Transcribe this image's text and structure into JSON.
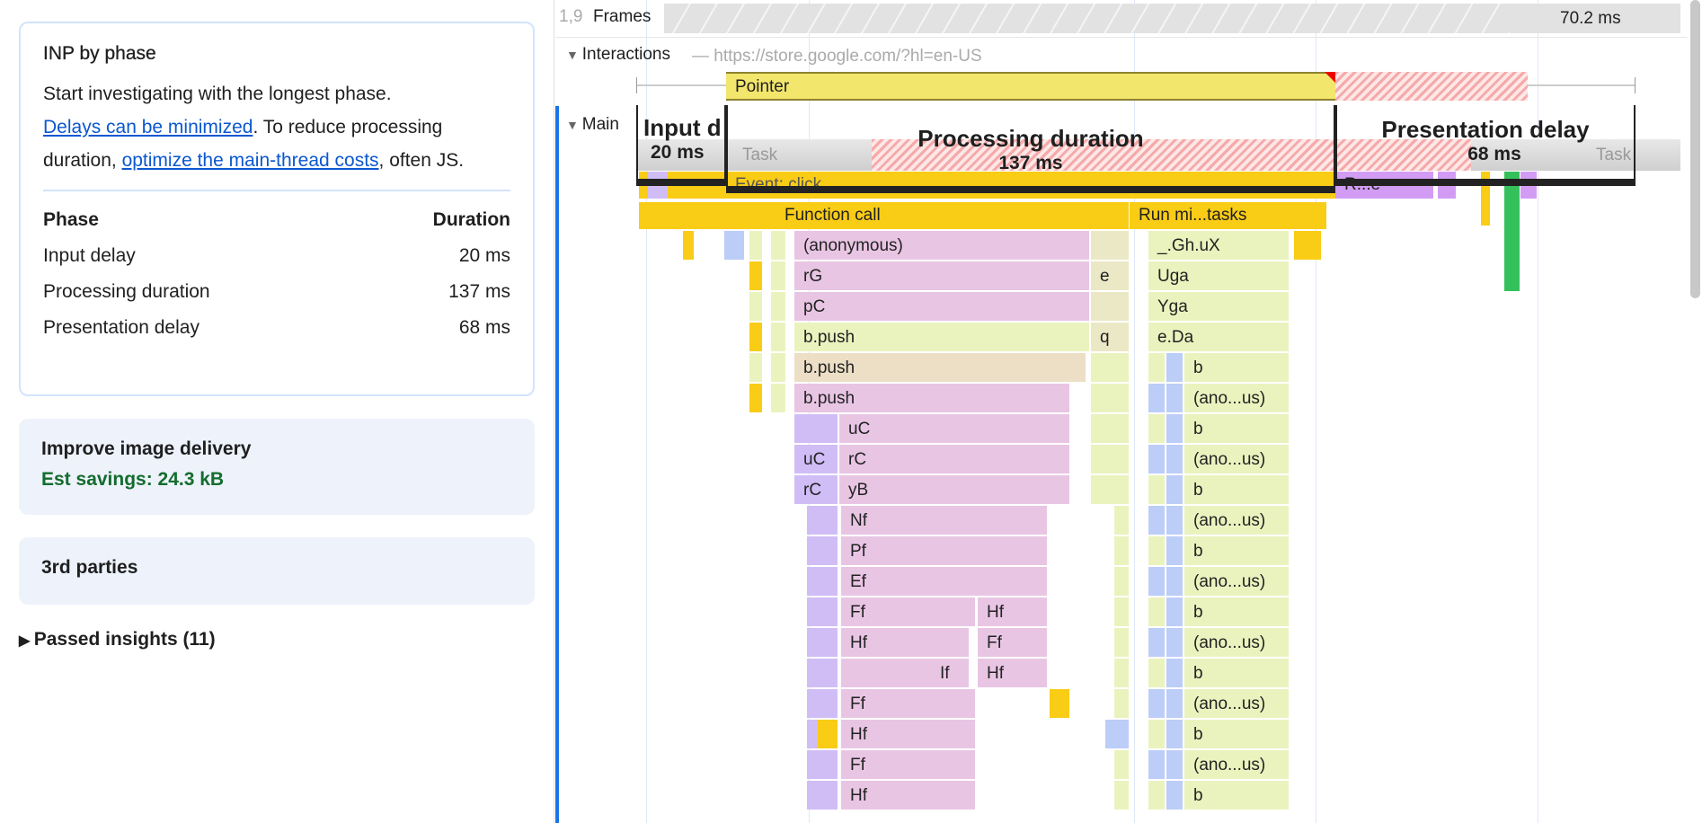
{
  "sidebar": {
    "inp_card": {
      "title": "INP by phase",
      "text1": "Start investigating with the longest phase.",
      "link1": "Delays can be minimized",
      "text2": ". To reduce processing duration, ",
      "link2": "optimize the main-thread costs",
      "text3": ", often JS.",
      "table": {
        "headers": [
          "Phase",
          "Duration"
        ],
        "rows": [
          [
            "Input delay",
            "20 ms"
          ],
          [
            "Processing duration",
            "137 ms"
          ],
          [
            "Presentation delay",
            "68 ms"
          ]
        ]
      }
    },
    "image_card": {
      "title": "Improve image delivery",
      "savings": "Est savings: 24.3 kB"
    },
    "third_parties": {
      "title": "3rd parties"
    },
    "passed": {
      "label": "Passed insights (11)"
    }
  },
  "timeline": {
    "frames_label": "Frames",
    "frames_prefix": "1,9",
    "frame_time": "70.2 ms",
    "interactions_label": "Interactions",
    "pointer_label": "Pointer",
    "main_label": "Main",
    "main_url": "— https://store.google.com/?hl=en-US",
    "task_label": "Task",
    "task_label2": "Task",
    "phases": [
      {
        "label": "Input d",
        "value": "20 ms"
      },
      {
        "label": "Processing duration",
        "value": "137 ms"
      },
      {
        "label": "Presentation delay",
        "value": "68 ms"
      }
    ],
    "event_click": "Event: click",
    "render": "R...e",
    "function_call": "Function call",
    "run_microtasks": "Run mi...tasks",
    "main_column": [
      "(anonymous)",
      "rG",
      "pC",
      "b.push",
      "b.push",
      "b.push",
      "uC",
      "rC",
      "yB",
      "Nf",
      "Pf",
      "Ef",
      "Ff",
      "Hf",
      "",
      "Ff",
      "Hf",
      "Ff",
      "Hf"
    ],
    "left_column": [
      "",
      "",
      "",
      "",
      "",
      "",
      "",
      "uC",
      "rC"
    ],
    "second_column": [
      "",
      "",
      "",
      "",
      "",
      "",
      "",
      "",
      "",
      "",
      "",
      "",
      "Hf",
      "Ff",
      "Hf",
      "",
      "",
      "",
      ""
    ],
    "if_label": "If",
    "mid_column": [
      "",
      "e",
      "",
      "q"
    ],
    "right_column": [
      "_.Gh.uX",
      "Uga",
      "Yga",
      "e.Da",
      "b",
      "(ano...us)",
      "b",
      "(ano...us)",
      "b",
      "(ano...us)",
      "b",
      "(ano...us)",
      "b",
      "(ano...us)",
      "b",
      "(ano...us)",
      "b",
      "(ano...us)",
      "b"
    ]
  },
  "colors": {
    "link": "#0b57d0",
    "savings": "#146c2e",
    "pointer": "#f2e66c",
    "scripting": "#f9cc16",
    "accent": "#1a73e8"
  }
}
